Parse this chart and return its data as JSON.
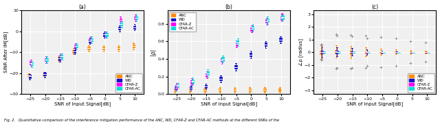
{
  "snr_values": [
    -25,
    -20,
    -15,
    -10,
    -5,
    0,
    5,
    10
  ],
  "snr_ticks": [
    -25,
    -20,
    -15,
    -10,
    -5,
    0,
    5,
    10
  ],
  "colors": {
    "ANC": "#FF8C00",
    "WD": "#1010CC",
    "CFAR-Z": "#FF00FF",
    "CFAR-AC": "#00DDDD"
  },
  "methods": [
    "ANC",
    "WD",
    "CFAR-Z",
    "CFAR-AC"
  ],
  "method_offsets": [
    -0.9,
    -0.3,
    0.3,
    0.9
  ],
  "subplot_a": {
    "ylabel": "SINR After IM[dB]",
    "xlabel": "SNR of Input Signal[dB]",
    "title": "(a)",
    "ylim": [
      -30,
      10
    ],
    "yticks": [
      -30,
      -20,
      -10,
      0,
      10
    ],
    "legend_loc": "lower right",
    "medians": {
      "ANC": [
        -21.0,
        -20.5,
        -13.0,
        -9.5,
        -8.0,
        -8.0,
        -8.0,
        -7.0
      ],
      "WD": [
        -21.5,
        -20.5,
        -13.0,
        -9.5,
        -4.5,
        -1.5,
        1.5,
        2.0
      ],
      "CFAR-Z": [
        -15.0,
        -13.5,
        -12.0,
        -7.0,
        -4.0,
        -1.5,
        5.5,
        6.5
      ],
      "CFAR-AC": [
        -15.5,
        -13.5,
        -12.0,
        -7.0,
        -4.0,
        -1.5,
        3.5,
        6.5
      ]
    },
    "q1": {
      "ANC": [
        -21.5,
        -21.0,
        -13.7,
        -10.2,
        -8.7,
        -8.7,
        -8.7,
        -7.7
      ],
      "WD": [
        -22.2,
        -21.2,
        -13.7,
        -10.2,
        -5.2,
        -2.2,
        0.8,
        1.3
      ],
      "CFAR-Z": [
        -15.7,
        -14.2,
        -12.7,
        -7.7,
        -4.7,
        -2.2,
        4.8,
        5.8
      ],
      "CFAR-AC": [
        -16.2,
        -14.2,
        -12.7,
        -7.7,
        -4.7,
        -2.2,
        2.8,
        5.8
      ]
    },
    "q3": {
      "ANC": [
        -20.5,
        -20.0,
        -12.3,
        -8.8,
        -7.3,
        -7.3,
        -7.3,
        -6.3
      ],
      "WD": [
        -20.8,
        -19.8,
        -12.3,
        -8.8,
        -3.8,
        -0.8,
        2.2,
        2.7
      ],
      "CFAR-Z": [
        -14.3,
        -12.8,
        -11.3,
        -6.3,
        -3.3,
        -0.8,
        6.2,
        7.2
      ],
      "CFAR-AC": [
        -14.8,
        -12.8,
        -11.3,
        -6.3,
        -3.3,
        -0.8,
        4.2,
        7.2
      ]
    },
    "whisker_low": {
      "ANC": [
        -22.0,
        -21.5,
        -14.5,
        -11.0,
        -9.5,
        -9.5,
        -9.5,
        -8.5
      ],
      "WD": [
        -23.0,
        -22.0,
        -14.5,
        -11.0,
        -6.0,
        -3.0,
        0.0,
        0.5
      ],
      "CFAR-Z": [
        -16.5,
        -15.0,
        -13.5,
        -8.5,
        -5.5,
        -3.0,
        4.0,
        5.0
      ],
      "CFAR-AC": [
        -17.0,
        -15.0,
        -13.5,
        -8.5,
        -5.5,
        -3.0,
        2.0,
        5.0
      ]
    },
    "whisker_high": {
      "ANC": [
        -20.0,
        -19.5,
        -11.5,
        -8.0,
        -6.5,
        -6.5,
        -6.5,
        -5.5
      ],
      "WD": [
        -20.3,
        -19.3,
        -11.5,
        -8.0,
        -3.0,
        0.0,
        3.0,
        3.5
      ],
      "CFAR-Z": [
        -13.5,
        -12.0,
        -10.5,
        -5.5,
        -2.5,
        0.0,
        7.0,
        8.0
      ],
      "CFAR-AC": [
        -14.0,
        -12.0,
        -10.5,
        -5.5,
        -2.5,
        0.0,
        5.0,
        8.0
      ]
    },
    "outliers": {
      "ANC": [
        null,
        null,
        null,
        null,
        null,
        null,
        null,
        -5.5
      ],
      "WD": [
        null,
        null,
        null,
        null,
        null,
        null,
        null,
        null
      ],
      "CFAR-Z": [
        null,
        null,
        null,
        null,
        null,
        null,
        null,
        null
      ],
      "CFAR-AC": [
        null,
        null,
        null,
        null,
        null,
        null,
        null,
        null
      ]
    }
  },
  "subplot_b": {
    "ylabel": "|ρ|",
    "xlabel": "SNR of Input Signal[dB]",
    "title": "(b)",
    "ylim": [
      0,
      0.95
    ],
    "yticks": [
      0.0,
      0.2,
      0.4,
      0.6,
      0.8
    ],
    "legend_loc": "upper left",
    "medians": {
      "ANC": [
        0.05,
        0.05,
        0.05,
        0.05,
        0.05,
        0.05,
        0.05,
        0.05
      ],
      "WD": [
        0.07,
        0.07,
        0.09,
        0.175,
        0.31,
        0.45,
        0.565,
        0.62
      ],
      "CFAR-Z": [
        0.095,
        0.14,
        0.22,
        0.385,
        0.57,
        0.74,
        0.83,
        0.865
      ],
      "CFAR-AC": [
        0.1,
        0.15,
        0.24,
        0.4,
        0.59,
        0.755,
        0.84,
        0.875
      ]
    },
    "q1": {
      "ANC": [
        0.035,
        0.035,
        0.035,
        0.035,
        0.035,
        0.035,
        0.035,
        0.035
      ],
      "WD": [
        0.055,
        0.055,
        0.075,
        0.155,
        0.29,
        0.43,
        0.545,
        0.6
      ],
      "CFAR-Z": [
        0.08,
        0.12,
        0.2,
        0.365,
        0.55,
        0.72,
        0.81,
        0.845
      ],
      "CFAR-AC": [
        0.085,
        0.13,
        0.22,
        0.38,
        0.57,
        0.735,
        0.82,
        0.855
      ]
    },
    "q3": {
      "ANC": [
        0.065,
        0.065,
        0.065,
        0.065,
        0.065,
        0.065,
        0.065,
        0.065
      ],
      "WD": [
        0.085,
        0.085,
        0.105,
        0.195,
        0.33,
        0.47,
        0.585,
        0.64
      ],
      "CFAR-Z": [
        0.11,
        0.16,
        0.24,
        0.405,
        0.59,
        0.76,
        0.85,
        0.885
      ],
      "CFAR-AC": [
        0.115,
        0.17,
        0.26,
        0.42,
        0.61,
        0.775,
        0.86,
        0.895
      ]
    },
    "whisker_low": {
      "ANC": [
        0.02,
        0.02,
        0.02,
        0.02,
        0.02,
        0.02,
        0.02,
        0.02
      ],
      "WD": [
        0.04,
        0.04,
        0.06,
        0.135,
        0.27,
        0.41,
        0.525,
        0.58
      ],
      "CFAR-Z": [
        0.065,
        0.1,
        0.18,
        0.345,
        0.53,
        0.7,
        0.79,
        0.825
      ],
      "CFAR-AC": [
        0.07,
        0.11,
        0.2,
        0.36,
        0.55,
        0.715,
        0.8,
        0.835
      ]
    },
    "whisker_high": {
      "ANC": [
        0.08,
        0.08,
        0.08,
        0.08,
        0.08,
        0.08,
        0.08,
        0.08
      ],
      "WD": [
        0.1,
        0.1,
        0.12,
        0.215,
        0.35,
        0.49,
        0.605,
        0.66
      ],
      "CFAR-Z": [
        0.125,
        0.18,
        0.26,
        0.425,
        0.61,
        0.78,
        0.87,
        0.905
      ],
      "CFAR-AC": [
        0.13,
        0.19,
        0.28,
        0.44,
        0.63,
        0.795,
        0.88,
        0.915
      ]
    },
    "outliers": {
      "ANC": [
        null,
        null,
        null,
        null,
        null,
        null,
        null,
        0.05
      ],
      "WD": [
        null,
        null,
        null,
        null,
        null,
        null,
        null,
        null
      ],
      "CFAR-Z": [
        null,
        null,
        null,
        null,
        null,
        null,
        null,
        0.91
      ],
      "CFAR-AC": [
        null,
        null,
        null,
        null,
        null,
        null,
        null,
        null
      ]
    }
  },
  "subplot_c": {
    "ylabel": "∠ρ [radius]",
    "xlabel": "SNR of Input Signal[dB]",
    "title": "(c)",
    "ylim": [
      -3.3,
      3.3
    ],
    "yticks": [
      -3,
      -2,
      -1,
      0,
      1,
      2,
      3
    ],
    "legend_loc": "lower right",
    "medians": {
      "ANC": [
        0.0,
        0.05,
        0.0,
        0.05,
        0.05,
        0.0,
        0.0,
        0.0
      ],
      "WD": [
        0.0,
        0.0,
        0.0,
        0.0,
        0.0,
        0.0,
        0.0,
        0.0
      ],
      "CFAR-Z": [
        0.0,
        0.0,
        0.0,
        0.0,
        0.0,
        0.0,
        0.0,
        0.0
      ],
      "CFAR-AC": [
        0.0,
        0.0,
        0.0,
        0.0,
        0.0,
        0.0,
        0.0,
        0.0
      ]
    },
    "q1": {
      "ANC": [
        -0.15,
        -0.1,
        -0.12,
        -0.08,
        -0.06,
        -0.05,
        -0.04,
        -0.03
      ],
      "WD": [
        -0.1,
        -0.08,
        -0.06,
        -0.05,
        -0.03,
        -0.02,
        -0.01,
        -0.01
      ],
      "CFAR-Z": [
        -0.05,
        -0.04,
        -0.03,
        -0.02,
        -0.01,
        -0.01,
        -0.01,
        -0.01
      ],
      "CFAR-AC": [
        -0.05,
        -0.04,
        -0.03,
        -0.02,
        -0.01,
        -0.01,
        -0.01,
        -0.01
      ]
    },
    "q3": {
      "ANC": [
        0.15,
        0.2,
        0.15,
        0.1,
        0.09,
        0.08,
        0.07,
        0.05
      ],
      "WD": [
        0.12,
        0.1,
        0.08,
        0.06,
        0.04,
        0.03,
        0.02,
        0.01
      ],
      "CFAR-Z": [
        0.05,
        0.04,
        0.03,
        0.02,
        0.01,
        0.01,
        0.01,
        0.01
      ],
      "CFAR-AC": [
        0.05,
        0.04,
        0.03,
        0.02,
        0.01,
        0.01,
        0.01,
        0.01
      ]
    },
    "whisker_low": {
      "ANC": [
        -0.5,
        -0.4,
        -0.45,
        -0.3,
        -0.2,
        -0.15,
        -0.12,
        -0.08
      ],
      "WD": [
        -0.4,
        -0.3,
        -0.25,
        -0.2,
        -0.1,
        -0.06,
        -0.03,
        -0.02
      ],
      "CFAR-Z": [
        -0.08,
        -0.06,
        -0.05,
        -0.04,
        -0.02,
        -0.01,
        -0.01,
        -0.01
      ],
      "CFAR-AC": [
        -0.08,
        -0.06,
        -0.05,
        -0.04,
        -0.02,
        -0.01,
        -0.01,
        -0.01
      ]
    },
    "whisker_high": {
      "ANC": [
        0.55,
        0.55,
        0.5,
        0.4,
        0.3,
        0.22,
        0.18,
        0.12
      ],
      "WD": [
        0.45,
        0.4,
        0.35,
        0.25,
        0.12,
        0.08,
        0.04,
        0.02
      ],
      "CFAR-Z": [
        0.08,
        0.06,
        0.05,
        0.04,
        0.02,
        0.01,
        0.01,
        0.01
      ],
      "CFAR-AC": [
        0.08,
        0.06,
        0.05,
        0.04,
        0.02,
        0.01,
        0.01,
        0.01
      ]
    },
    "outliers_high": {
      "ANC": [
        0.6,
        1.4,
        1.35,
        1.3,
        1.2,
        1.1,
        0.9,
        0.8
      ],
      "WD": [
        0.6,
        1.3,
        1.25,
        1.1,
        null,
        null,
        null,
        null
      ],
      "CFAR-Z": [
        null,
        null,
        null,
        null,
        null,
        null,
        null,
        null
      ],
      "CFAR-AC": [
        null,
        null,
        null,
        null,
        null,
        null,
        null,
        null
      ]
    },
    "outliers_low": {
      "ANC": [
        -0.6,
        -1.3,
        -1.3,
        -1.25,
        -1.15,
        -1.05,
        -0.85,
        -0.75
      ],
      "WD": [
        -0.6,
        -1.25,
        -1.2,
        -1.05,
        null,
        null,
        null,
        null
      ],
      "CFAR-Z": [
        null,
        null,
        null,
        null,
        null,
        null,
        null,
        null
      ],
      "CFAR-AC": [
        null,
        null,
        null,
        null,
        null,
        null,
        null,
        null
      ]
    }
  },
  "figure_caption": "Fig. 2.   Quantitative comparison of the interference mitigation performance of the ANC, WD, CFAR-Z and CFAR-AC methods at the different SNRs of the"
}
